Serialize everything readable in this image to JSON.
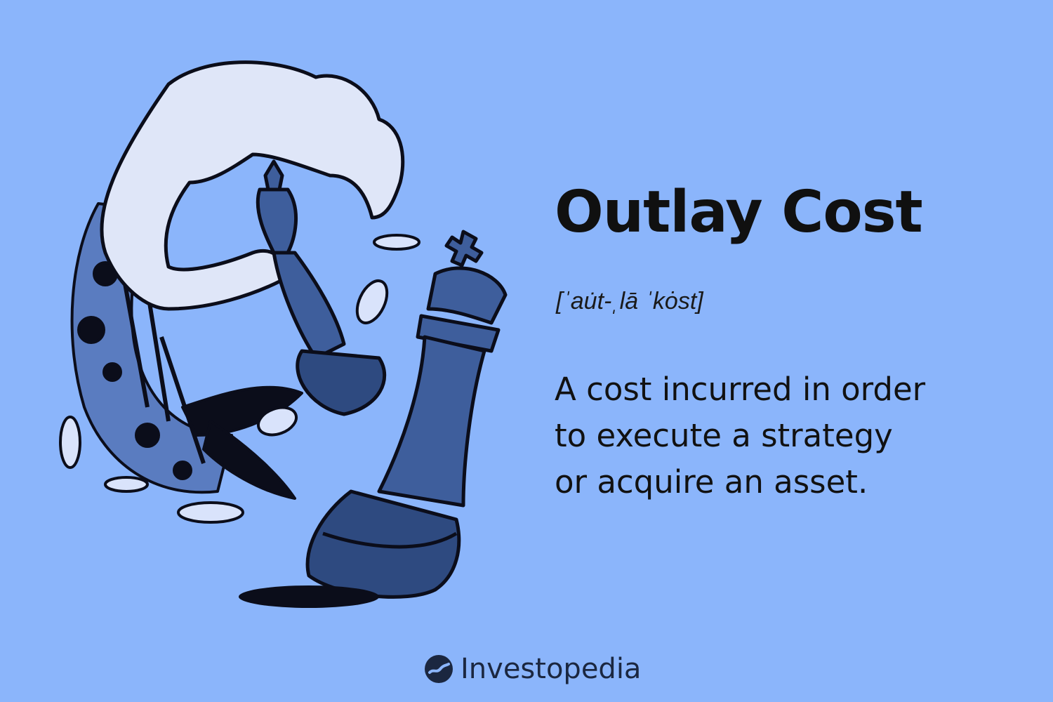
{
  "page": {
    "background": "#8bb5fb"
  },
  "illustration": {
    "description_icon": "hand-moving-chess-king-icon"
  },
  "term": {
    "title": "Outlay Cost",
    "pronunciation": "[ˈau̇t-ˌlā ˈkȯst]",
    "definition_lines": [
      "A cost incurred in order",
      "to execute a strategy",
      "or acquire an asset."
    ]
  },
  "brand": {
    "name": "Investopedia",
    "logo_icon": "investopedia-logo-icon"
  }
}
